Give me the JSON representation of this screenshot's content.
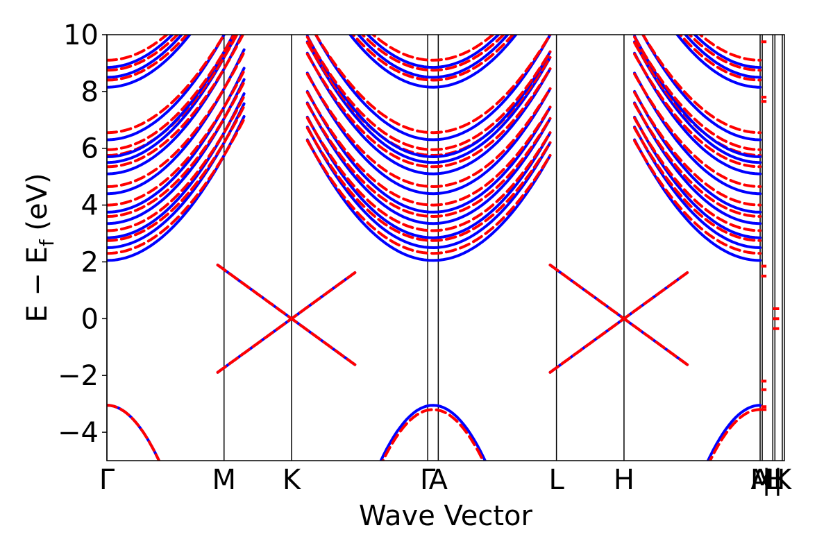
{
  "chart_data": {
    "type": "line",
    "title": "",
    "xlabel": "Wave Vector",
    "ylabel": {
      "main": "E − E",
      "sub": "f",
      "suffix": " (eV)"
    },
    "ylim": [
      -5,
      10
    ],
    "yticks": [
      -4,
      -2,
      0,
      2,
      4,
      6,
      8,
      10
    ],
    "ytick_labels": [
      "−4",
      "−2",
      "0",
      "2",
      "4",
      "6",
      "8",
      "10"
    ],
    "x_range": [
      0,
      6.42
    ],
    "kpoints": [
      {
        "label": "Γ",
        "x": 0
      },
      {
        "label": "M",
        "x": 1.11
      },
      {
        "label": "K",
        "x": 1.75
      },
      {
        "label": "Γ",
        "x": 3.04
      },
      {
        "label": "A",
        "x": 3.14
      },
      {
        "label": "L",
        "x": 4.26
      },
      {
        "label": "H",
        "x": 4.9
      },
      {
        "label": "A",
        "x": 6.19
      },
      {
        "label": "M",
        "x": 6.21
      },
      {
        "label": "|",
        "x": 6.25
      },
      {
        "label": "L",
        "x": 6.31
      },
      {
        "label": "|",
        "x": 6.36
      },
      {
        "label": "H",
        "x": 6.33
      },
      {
        "label": "K",
        "x": 6.4
      }
    ],
    "series": [
      {
        "color": "#0000ff",
        "style": "solid",
        "linewidth": 4
      },
      {
        "color": "#ff0000",
        "style": "dashed",
        "linewidth": 4
      }
    ],
    "bands": {
      "valence_set_1": {
        "gamma_max_values": [
          -3.05,
          -3.2
        ],
        "m_plateau_values": [
          -2.2,
          -2.55
        ],
        "k_crossing": 0
      },
      "dirac_like": {
        "k_values": [
          0.3,
          0,
          -0.3
        ],
        "m_plateau_values": [
          1.85,
          1.5
        ],
        "upper_peak_approx": [
          5.2,
          5.8
        ]
      },
      "conduction_gamma_values": [
        2.05,
        2.5,
        2.85,
        3.35,
        3.75,
        4.4,
        5.1,
        5.5,
        5.7,
        6.3,
        8.15,
        8.5,
        8.85
      ],
      "conduction_m_values": [
        7.65,
        7.8,
        9.9
      ],
      "edge_features": {
        "at_A": [
          -3.1,
          -3.2,
          1.85,
          1.5,
          -2.2,
          -2.5,
          7.65,
          7.8,
          9.75
        ],
        "at_H_K": [
          0.35,
          0,
          -0.35
        ]
      }
    }
  }
}
